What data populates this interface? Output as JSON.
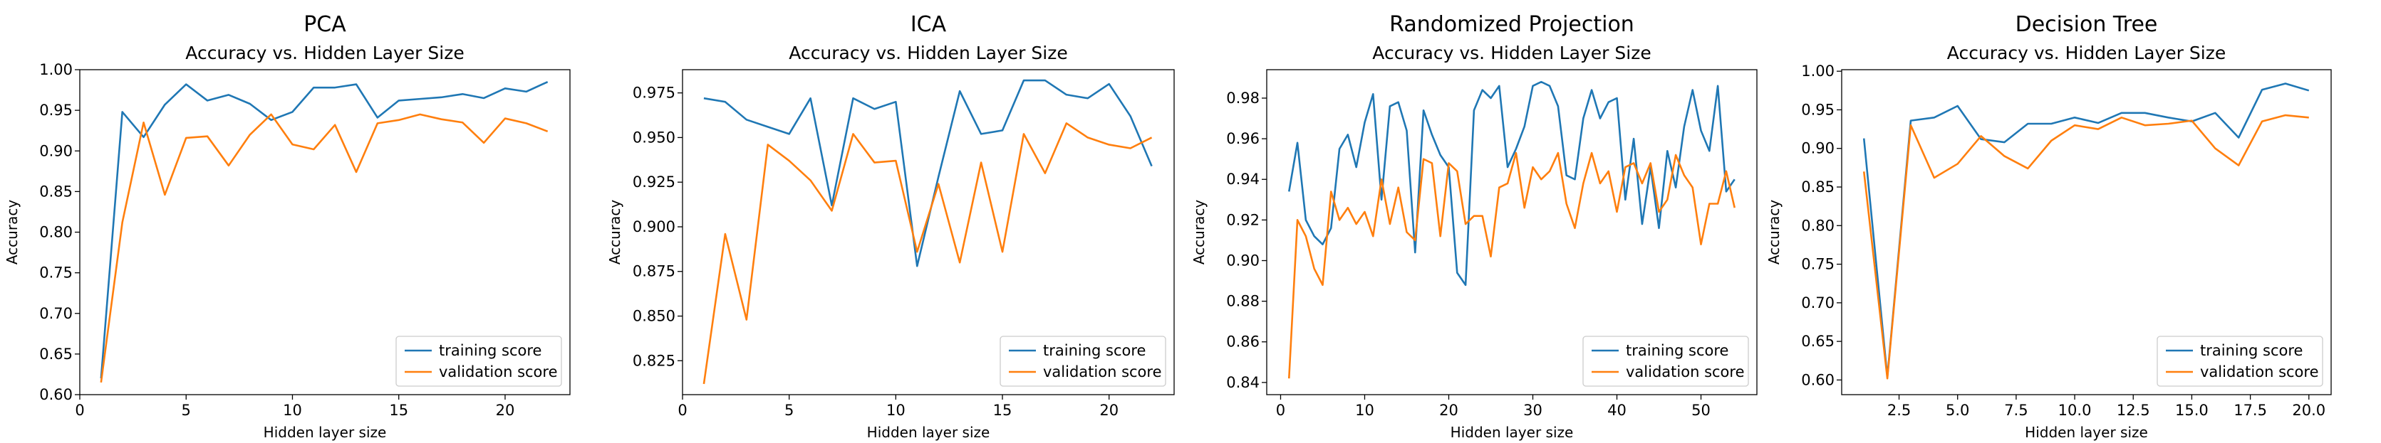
{
  "colors": {
    "training": "#1f77b4",
    "validation": "#ff7f0e",
    "axis": "#000000",
    "legend_border": "#cccccc"
  },
  "chart_data": [
    {
      "type": "line",
      "title": "PCA",
      "subtitle": "Accuracy vs. Hidden Layer Size",
      "xlabel": "Hidden layer size",
      "ylabel": "Accuracy",
      "xlim": [
        0,
        23.05
      ],
      "ylim": [
        0.6,
        1.0
      ],
      "xticks": [
        "0",
        "5",
        "10",
        "15",
        "20"
      ],
      "xtick_values": [
        0,
        5,
        10,
        15,
        20
      ],
      "yticks": [
        "0.60",
        "0.65",
        "0.70",
        "0.75",
        "0.80",
        "0.85",
        "0.90",
        "0.95",
        "1.00"
      ],
      "ytick_values": [
        0.6,
        0.65,
        0.7,
        0.75,
        0.8,
        0.85,
        0.9,
        0.95,
        1.0
      ],
      "legend_position": "lower-right",
      "x": [
        1,
        2,
        3,
        4,
        5,
        6,
        7,
        8,
        9,
        10,
        11,
        12,
        13,
        14,
        15,
        16,
        17,
        18,
        19,
        20,
        21,
        22
      ],
      "series": [
        {
          "name": "training score",
          "values": [
            0.62,
            0.948,
            0.917,
            0.957,
            0.982,
            0.962,
            0.969,
            0.958,
            0.938,
            0.948,
            0.978,
            0.978,
            0.982,
            0.941,
            0.962,
            0.964,
            0.966,
            0.97,
            0.965,
            0.977,
            0.973,
            0.985
          ]
        },
        {
          "name": "validation score",
          "values": [
            0.615,
            0.812,
            0.935,
            0.846,
            0.916,
            0.918,
            0.882,
            0.92,
            0.945,
            0.908,
            0.902,
            0.932,
            0.874,
            0.934,
            0.938,
            0.945,
            0.939,
            0.935,
            0.91,
            0.94,
            0.934,
            0.924
          ]
        }
      ]
    },
    {
      "type": "line",
      "title": "ICA",
      "subtitle": "Accuracy vs. Hidden Layer Size",
      "xlabel": "Hidden layer size",
      "ylabel": "Accuracy",
      "xlim": [
        0,
        23.05
      ],
      "ylim": [
        0.806,
        0.988
      ],
      "xticks": [
        "0",
        "5",
        "10",
        "15",
        "20"
      ],
      "xtick_values": [
        0,
        5,
        10,
        15,
        20
      ],
      "yticks": [
        "0.825",
        "0.850",
        "0.875",
        "0.900",
        "0.925",
        "0.950",
        "0.975"
      ],
      "ytick_values": [
        0.825,
        0.85,
        0.875,
        0.9,
        0.925,
        0.95,
        0.975
      ],
      "legend_position": "lower-right",
      "x": [
        1,
        2,
        3,
        4,
        5,
        6,
        7,
        8,
        9,
        10,
        11,
        12,
        13,
        14,
        15,
        16,
        17,
        18,
        19,
        20,
        21,
        22
      ],
      "series": [
        {
          "name": "training score",
          "values": [
            0.972,
            0.97,
            0.96,
            0.956,
            0.952,
            0.972,
            0.912,
            0.972,
            0.966,
            0.97,
            0.878,
            0.928,
            0.976,
            0.952,
            0.954,
            0.982,
            0.982,
            0.974,
            0.972,
            0.98,
            0.962,
            0.934
          ]
        },
        {
          "name": "validation score",
          "values": [
            0.812,
            0.896,
            0.848,
            0.946,
            0.937,
            0.926,
            0.909,
            0.952,
            0.936,
            0.937,
            0.886,
            0.924,
            0.88,
            0.936,
            0.886,
            0.952,
            0.93,
            0.958,
            0.95,
            0.946,
            0.944,
            0.95
          ]
        }
      ]
    },
    {
      "type": "line",
      "title": "Randomized Projection",
      "subtitle": "Accuracy vs. Hidden Layer Size",
      "xlabel": "Hidden layer size",
      "ylabel": "Accuracy",
      "xlim": [
        -1.65,
        56.65
      ],
      "ylim": [
        0.834,
        0.994
      ],
      "xticks": [
        "0",
        "10",
        "20",
        "30",
        "40",
        "50"
      ],
      "xtick_values": [
        0,
        10,
        20,
        30,
        40,
        50
      ],
      "yticks": [
        "0.84",
        "0.86",
        "0.88",
        "0.90",
        "0.92",
        "0.94",
        "0.96",
        "0.98"
      ],
      "ytick_values": [
        0.84,
        0.86,
        0.88,
        0.9,
        0.92,
        0.94,
        0.96,
        0.98
      ],
      "legend_position": "lower-right",
      "x": [
        1,
        2,
        3,
        4,
        5,
        6,
        7,
        8,
        9,
        10,
        11,
        12,
        13,
        14,
        15,
        16,
        17,
        18,
        19,
        20,
        21,
        22,
        23,
        24,
        25,
        26,
        27,
        28,
        29,
        30,
        31,
        32,
        33,
        34,
        35,
        36,
        37,
        38,
        39,
        40,
        41,
        42,
        43,
        44,
        45,
        46,
        47,
        48,
        49,
        50,
        51,
        52,
        53,
        54
      ],
      "series": [
        {
          "name": "training score",
          "values": [
            0.934,
            0.958,
            0.92,
            0.912,
            0.908,
            0.916,
            0.955,
            0.962,
            0.946,
            0.968,
            0.982,
            0.93,
            0.976,
            0.978,
            0.964,
            0.904,
            0.974,
            0.962,
            0.952,
            0.946,
            0.894,
            0.888,
            0.974,
            0.984,
            0.98,
            0.986,
            0.946,
            0.955,
            0.966,
            0.986,
            0.988,
            0.986,
            0.976,
            0.942,
            0.94,
            0.97,
            0.984,
            0.97,
            0.978,
            0.98,
            0.93,
            0.96,
            0.918,
            0.946,
            0.916,
            0.954,
            0.936,
            0.966,
            0.984,
            0.964,
            0.954,
            0.986,
            0.934,
            0.94
          ]
        },
        {
          "name": "validation score",
          "values": [
            0.842,
            0.92,
            0.912,
            0.896,
            0.888,
            0.934,
            0.92,
            0.926,
            0.918,
            0.924,
            0.912,
            0.94,
            0.918,
            0.936,
            0.914,
            0.91,
            0.95,
            0.948,
            0.912,
            0.948,
            0.944,
            0.918,
            0.922,
            0.922,
            0.902,
            0.936,
            0.938,
            0.953,
            0.926,
            0.946,
            0.94,
            0.944,
            0.953,
            0.928,
            0.916,
            0.938,
            0.953,
            0.938,
            0.944,
            0.924,
            0.946,
            0.948,
            0.938,
            0.948,
            0.924,
            0.93,
            0.952,
            0.942,
            0.936,
            0.908,
            0.928,
            0.928,
            0.944,
            0.926
          ]
        }
      ]
    },
    {
      "type": "line",
      "title": "Decision Tree",
      "subtitle": "Accuracy vs. Hidden Layer Size",
      "xlabel": "Hidden layer size",
      "ylabel": "Accuracy",
      "xlim": [
        0.05,
        20.95
      ],
      "ylim": [
        0.581,
        1.002
      ],
      "xticks": [
        "2.5",
        "5.0",
        "7.5",
        "10.0",
        "12.5",
        "15.0",
        "17.5",
        "20.0"
      ],
      "xtick_values": [
        2.5,
        5,
        7.5,
        10,
        12.5,
        15,
        17.5,
        20
      ],
      "yticks": [
        "0.60",
        "0.65",
        "0.70",
        "0.75",
        "0.80",
        "0.85",
        "0.90",
        "0.95",
        "1.00"
      ],
      "ytick_values": [
        0.6,
        0.65,
        0.7,
        0.75,
        0.8,
        0.85,
        0.9,
        0.95,
        1.0
      ],
      "legend_position": "lower-right",
      "x": [
        1,
        2,
        3,
        4,
        5,
        6,
        7,
        8,
        9,
        10,
        11,
        12,
        13,
        14,
        15,
        16,
        17,
        18,
        19,
        20
      ],
      "series": [
        {
          "name": "training score",
          "values": [
            0.913,
            0.604,
            0.936,
            0.94,
            0.955,
            0.912,
            0.908,
            0.932,
            0.932,
            0.94,
            0.933,
            0.946,
            0.946,
            0.94,
            0.935,
            0.946,
            0.914,
            0.976,
            0.984,
            0.975
          ]
        },
        {
          "name": "validation score",
          "values": [
            0.87,
            0.602,
            0.93,
            0.862,
            0.88,
            0.916,
            0.89,
            0.874,
            0.91,
            0.93,
            0.925,
            0.94,
            0.93,
            0.932,
            0.936,
            0.9,
            0.878,
            0.935,
            0.943,
            0.94
          ]
        }
      ]
    }
  ]
}
